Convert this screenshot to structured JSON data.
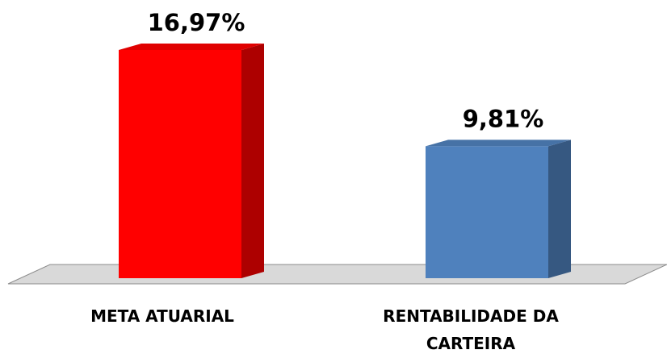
{
  "chart_data": {
    "type": "bar3d",
    "categories": [
      "META ATUARIAL",
      "RENTABILIDADE DA CARTEIRA"
    ],
    "values": [
      16.97,
      9.81
    ],
    "value_labels": [
      "16,97%",
      "9,81%"
    ],
    "colors": [
      "#ff0000",
      "#4f81bd"
    ]
  }
}
